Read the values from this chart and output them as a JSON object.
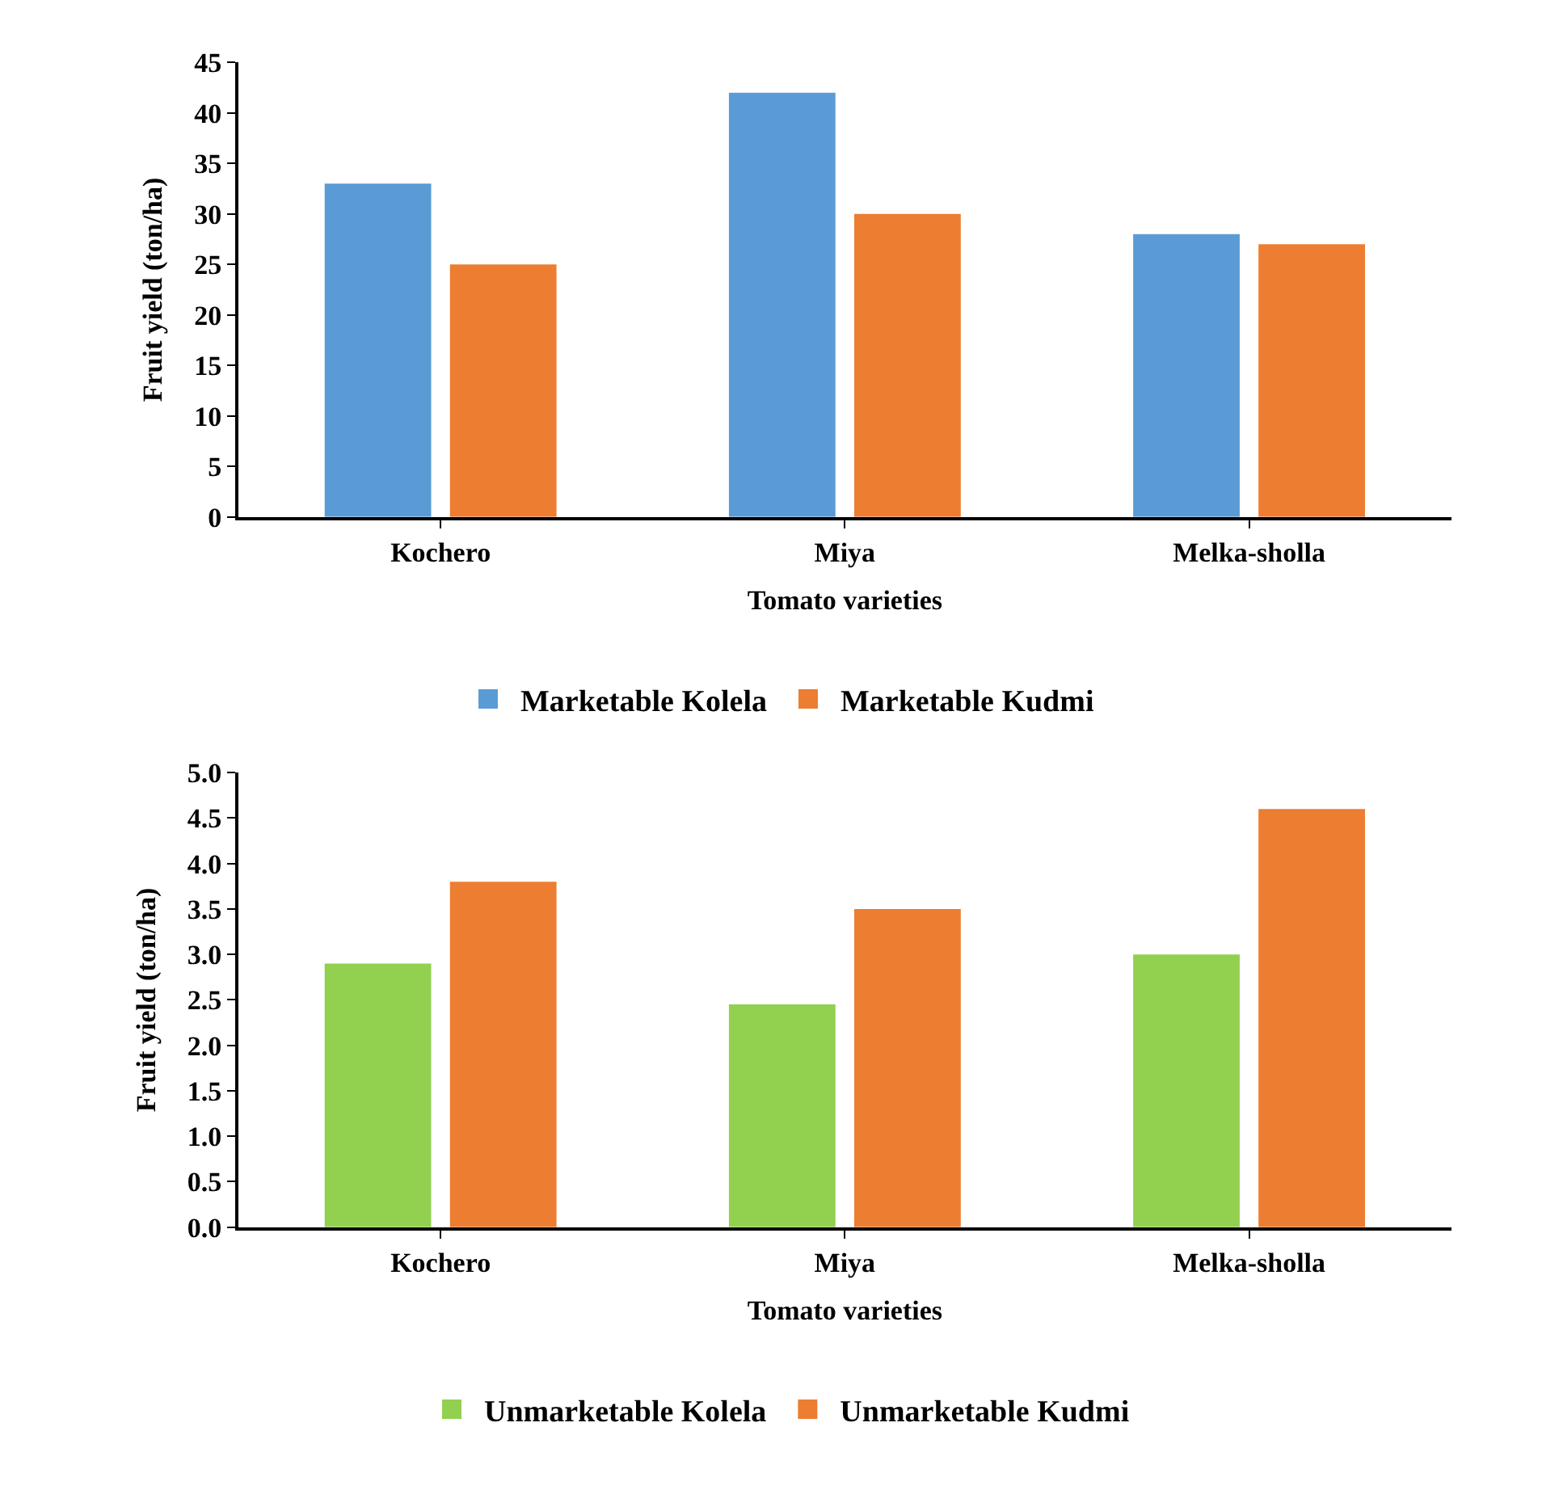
{
  "chart_data": [
    {
      "type": "bar",
      "xlabel": "Tomato varieties",
      "ylabel": "Fruit yield (ton/ha)",
      "categories": [
        "Kochero",
        "Miya",
        "Melka-sholla"
      ],
      "series": [
        {
          "name": "Marketable Kolela",
          "color": "#5b9bd5",
          "values": [
            33,
            42,
            28
          ]
        },
        {
          "name": "Marketable Kudmi",
          "color": "#ed7d31",
          "values": [
            25,
            30,
            27
          ]
        }
      ],
      "ylim": [
        0,
        45
      ],
      "yticks": [
        0,
        5,
        10,
        15,
        20,
        25,
        30,
        35,
        40,
        45
      ],
      "legend": "bottom"
    },
    {
      "type": "bar",
      "xlabel": "Tomato varieties",
      "ylabel": "Fruit yield (ton/ha)",
      "categories": [
        "Kochero",
        "Miya",
        "Melka-sholla"
      ],
      "series": [
        {
          "name": "Unmarketable Kolela",
          "color": "#92d050",
          "values": [
            2.9,
            2.45,
            3.0
          ]
        },
        {
          "name": "Unmarketable Kudmi",
          "color": "#ed7d31",
          "values": [
            3.8,
            3.5,
            4.6
          ]
        }
      ],
      "ylim": [
        0,
        5
      ],
      "yticks": [
        {
          "value": 0,
          "label": "0.0"
        },
        0.5,
        {
          "value": 1,
          "label": "1.0"
        },
        1.5,
        {
          "value": 2,
          "label": "2.0"
        },
        2.5,
        {
          "value": 3,
          "label": "3.0"
        },
        3.5,
        {
          "value": 4,
          "label": "4.0"
        },
        4.5,
        {
          "value": 5,
          "label": "5.0"
        }
      ],
      "legend": "bottom"
    }
  ]
}
